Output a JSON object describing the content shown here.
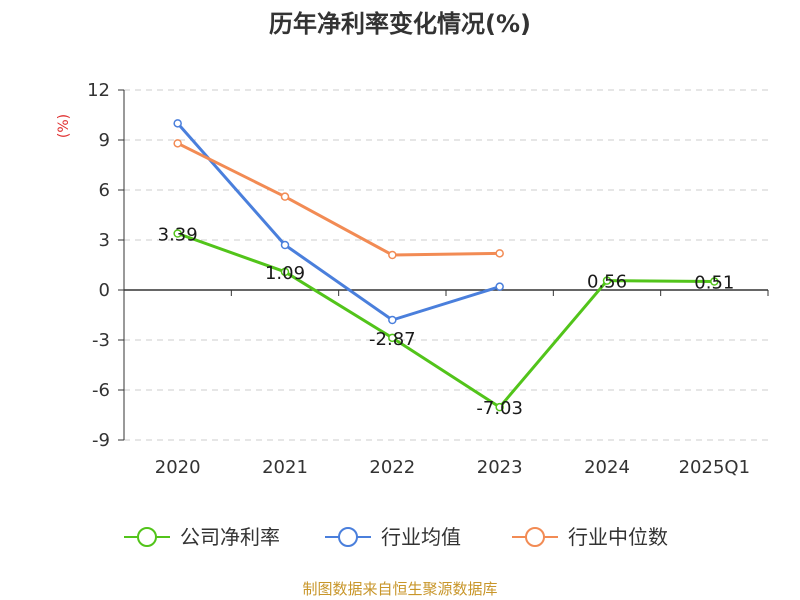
{
  "chart_data": {
    "type": "line",
    "title": "历年净利率变化情况(%)",
    "ylabel": "(%)",
    "ylim": [
      -9,
      12
    ],
    "yticks": [
      12,
      9,
      6,
      3,
      0,
      -3,
      -6,
      -9
    ],
    "grid": true,
    "categories": [
      "2020",
      "2021",
      "2022",
      "2023",
      "2024",
      "2025Q1"
    ],
    "series": [
      {
        "name": "公司净利率",
        "color": "#52c41a",
        "values": [
          3.39,
          1.09,
          -2.87,
          -7.03,
          0.56,
          0.51
        ],
        "labels": [
          "3.39",
          "1.09",
          "-2.87",
          "-7.03",
          "0.56",
          "0.51"
        ]
      },
      {
        "name": "行业均值",
        "color": "#4a7fdc",
        "values": [
          10.0,
          2.7,
          -1.8,
          0.2,
          null,
          null
        ]
      },
      {
        "name": "行业中位数",
        "color": "#f28b54",
        "values": [
          8.8,
          5.6,
          2.1,
          2.2,
          null,
          null
        ]
      }
    ],
    "legend_position": "bottom"
  },
  "footer": {
    "source": "制图数据来自恒生聚源数据库"
  }
}
